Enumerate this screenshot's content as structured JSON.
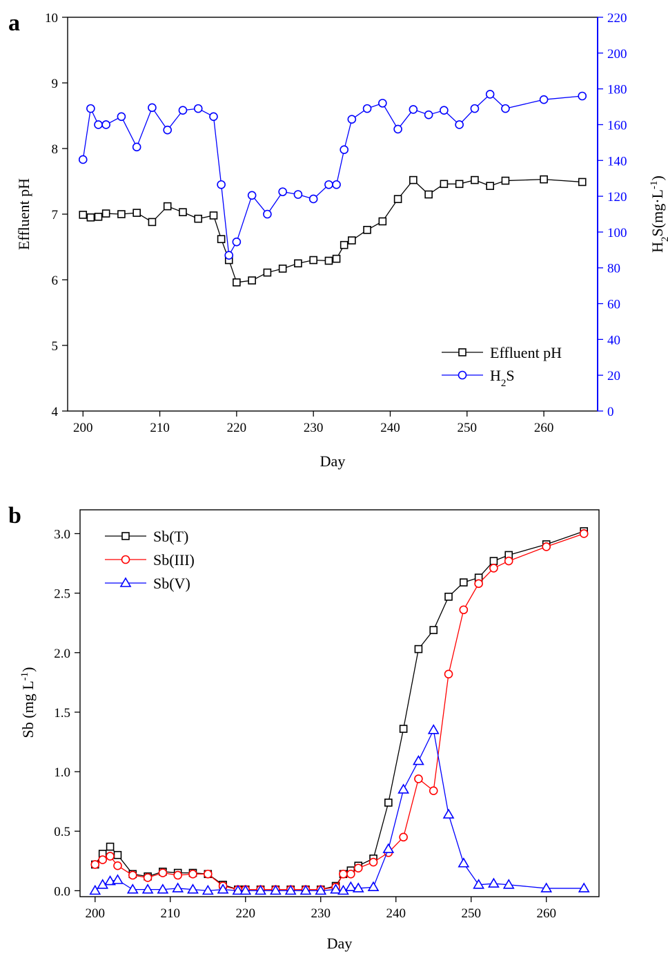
{
  "chart_data": [
    {
      "panel_label": "a",
      "type": "line",
      "xlabel": "Day",
      "ylabel": "Effluent pH",
      "ylabel_right": [
        "H",
        "2",
        "S(mg·L",
        "-1",
        ")"
      ],
      "xlim": [
        198,
        267
      ],
      "ylim": [
        4,
        10
      ],
      "ylim_right": [
        0,
        220
      ],
      "x_ticks": [
        200,
        210,
        220,
        230,
        240,
        250,
        260
      ],
      "y_ticks": [
        4,
        5,
        6,
        7,
        8,
        9,
        10
      ],
      "y_ticks_right": [
        0,
        20,
        40,
        60,
        80,
        100,
        120,
        140,
        160,
        180,
        200,
        220
      ],
      "grid": false,
      "legend_position": "bottom-right",
      "colors": {
        "left_axis": "#000000",
        "right_axis": "#0000ff"
      },
      "series": [
        {
          "name": "Effluent pH",
          "axis": "left",
          "color": "#000000",
          "marker": "square",
          "x": [
            200,
            201,
            202,
            203,
            205,
            207,
            209,
            211,
            213,
            215,
            217,
            218,
            219,
            220,
            222,
            224,
            226,
            228,
            230,
            232,
            233,
            234,
            235,
            237,
            239,
            241,
            243,
            245,
            247,
            249,
            251,
            253,
            255,
            260,
            265
          ],
          "y": [
            6.99,
            6.95,
            6.96,
            7.01,
            7.0,
            7.02,
            6.88,
            7.12,
            7.03,
            6.93,
            6.98,
            6.62,
            6.3,
            5.96,
            5.99,
            6.11,
            6.17,
            6.25,
            6.3,
            6.29,
            6.32,
            6.53,
            6.6,
            6.76,
            6.89,
            7.23,
            7.52,
            7.3,
            7.46,
            7.46,
            7.52,
            7.43,
            7.51,
            7.53,
            7.49
          ]
        },
        {
          "name": "H2S",
          "name_display": [
            "H",
            "2",
            "S"
          ],
          "axis": "right",
          "color": "#0000ff",
          "marker": "circle",
          "x": [
            200,
            201,
            202,
            203,
            205,
            207,
            209,
            211,
            213,
            215,
            217,
            218,
            219,
            220,
            222,
            224,
            226,
            228,
            230,
            232,
            233,
            234,
            235,
            237,
            239,
            241,
            243,
            245,
            247,
            249,
            251,
            253,
            255,
            260,
            265
          ],
          "y": [
            140.5,
            169,
            160,
            160,
            164.5,
            147.5,
            169.5,
            157,
            168,
            169,
            164.5,
            126.5,
            87,
            94.5,
            120.5,
            110,
            122.5,
            121,
            118.5,
            126.5,
            126.5,
            146,
            163,
            169,
            172,
            157.5,
            168.5,
            165.5,
            168,
            160,
            169,
            177,
            169,
            174,
            176
          ]
        }
      ]
    },
    {
      "panel_label": "b",
      "type": "line",
      "xlabel": "Day",
      "ylabel": [
        "Sb (mg L",
        "-1",
        ")"
      ],
      "xlim": [
        198,
        267
      ],
      "ylim": [
        -0.05,
        3.2
      ],
      "x_ticks": [
        200,
        210,
        220,
        230,
        240,
        250,
        260
      ],
      "y_ticks": [
        "0.0",
        "0.5",
        "1.0",
        "1.5",
        "2.0",
        "2.5",
        "3.0"
      ],
      "grid": false,
      "legend_position": "top-left",
      "series": [
        {
          "name": "Sb(T)",
          "color": "#000000",
          "marker": "square",
          "x": [
            200,
            201,
            202,
            203,
            205,
            207,
            209,
            211,
            213,
            215,
            217,
            219,
            220,
            222,
            224,
            226,
            228,
            230,
            232,
            233,
            234,
            235,
            237,
            239,
            241,
            243,
            245,
            247,
            249,
            251,
            253,
            255,
            260,
            265
          ],
          "y": [
            0.22,
            0.31,
            0.37,
            0.3,
            0.14,
            0.12,
            0.16,
            0.15,
            0.15,
            0.14,
            0.05,
            0.01,
            0.01,
            0.01,
            0.01,
            0.01,
            0.01,
            0.01,
            0.04,
            0.14,
            0.17,
            0.21,
            0.27,
            0.74,
            1.36,
            2.03,
            2.19,
            2.47,
            2.59,
            2.63,
            2.77,
            2.82,
            2.91,
            3.02
          ]
        },
        {
          "name": "Sb(III)",
          "color": "#ff0000",
          "marker": "circle",
          "x": [
            200,
            201,
            202,
            203,
            205,
            207,
            209,
            211,
            213,
            215,
            217,
            219,
            220,
            222,
            224,
            226,
            228,
            230,
            232,
            233,
            234,
            235,
            237,
            239,
            241,
            243,
            245,
            247,
            249,
            251,
            253,
            255,
            260,
            265
          ],
          "y": [
            0.22,
            0.26,
            0.29,
            0.21,
            0.13,
            0.11,
            0.15,
            0.13,
            0.14,
            0.14,
            0.04,
            0.01,
            0.01,
            0.01,
            0.01,
            0.01,
            0.01,
            0.01,
            0.03,
            0.14,
            0.14,
            0.19,
            0.24,
            0.32,
            0.45,
            0.94,
            0.84,
            1.82,
            2.36,
            2.58,
            2.71,
            2.77,
            2.89,
            3.0
          ]
        },
        {
          "name": "Sb(V)",
          "color": "#0000ff",
          "marker": "triangle",
          "x": [
            200,
            201,
            202,
            203,
            205,
            207,
            209,
            211,
            213,
            215,
            217,
            219,
            220,
            222,
            224,
            226,
            228,
            230,
            232,
            233,
            234,
            235,
            237,
            239,
            241,
            243,
            245,
            247,
            249,
            251,
            253,
            255,
            260,
            265
          ],
          "y": [
            0.0,
            0.05,
            0.08,
            0.09,
            0.01,
            0.01,
            0.01,
            0.02,
            0.01,
            0.0,
            0.01,
            0.0,
            0.0,
            0.0,
            0.0,
            0.0,
            0.0,
            0.0,
            0.01,
            0.0,
            0.03,
            0.02,
            0.03,
            0.35,
            0.85,
            1.09,
            1.35,
            0.64,
            0.23,
            0.05,
            0.06,
            0.05,
            0.02,
            0.02
          ]
        }
      ]
    }
  ]
}
